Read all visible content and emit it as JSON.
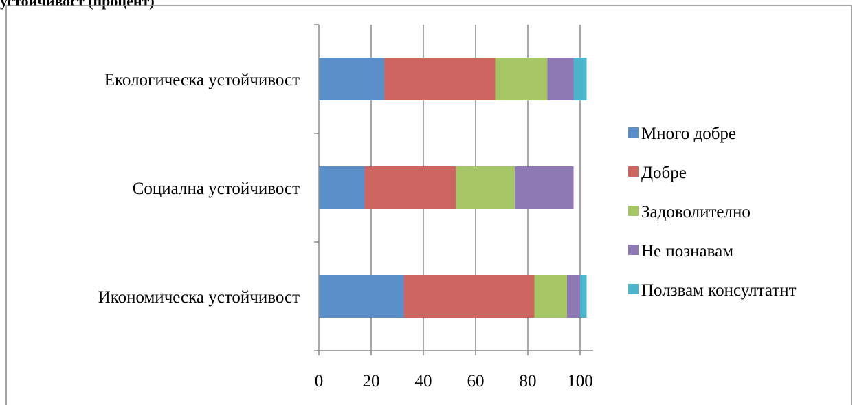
{
  "chart_data": {
    "type": "bar",
    "orientation": "horizontal",
    "stacked": true,
    "title": "устойчивост (процент)",
    "categories": [
      "Икономическа устойчивост",
      "Социална устойчивост",
      "Екологическа устойчивост"
    ],
    "series": [
      {
        "name": "Много добре",
        "color": "#5b8fc9",
        "values": [
          32.5,
          17.5,
          25
        ]
      },
      {
        "name": "Добре",
        "color": "#cd6660",
        "values": [
          50,
          35,
          42.5
        ]
      },
      {
        "name": "Задоволително",
        "color": "#a6c565",
        "values": [
          12.5,
          22.5,
          20
        ]
      },
      {
        "name": "Не познавам",
        "color": "#8f79b4",
        "values": [
          5,
          22.5,
          10
        ]
      },
      {
        "name": "Ползвам консултатнт",
        "color": "#4bb5cb",
        "values": [
          2.5,
          0,
          5
        ]
      }
    ],
    "xticks": [
      "0",
      "20",
      "40",
      "60",
      "80",
      "100"
    ],
    "xlim": [
      0,
      105
    ],
    "grid": true,
    "legend_position": "right"
  }
}
